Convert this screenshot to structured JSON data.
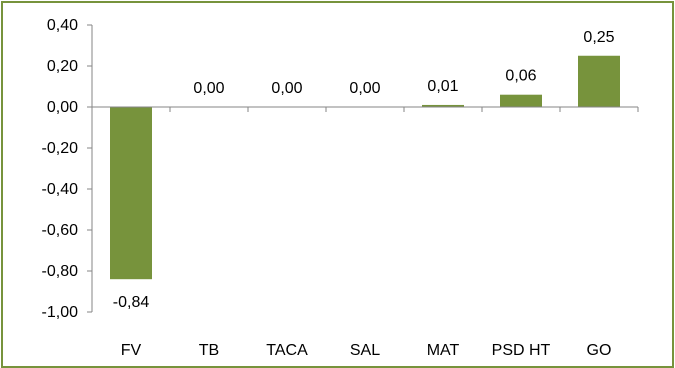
{
  "chart_data": {
    "type": "bar",
    "categories": [
      "FV",
      "TB",
      "TACA",
      "SAL",
      "MAT",
      "PSD HT",
      "GO"
    ],
    "values": [
      -0.84,
      0.0,
      0.0,
      0.0,
      0.01,
      0.06,
      0.25
    ],
    "data_labels": [
      "-0,84",
      "0,00",
      "0,00",
      "0,00",
      "0,01",
      "0,06",
      "0,25"
    ],
    "ylim": [
      -1.0,
      0.4
    ],
    "yticks": [
      0.4,
      0.2,
      0.0,
      -0.2,
      -0.4,
      -0.6,
      -0.8,
      -1.0
    ],
    "ytick_labels": [
      "0,40",
      "0,20",
      "0,00",
      "-0,20",
      "-0,40",
      "-0,60",
      "-0,80",
      "-1,00"
    ],
    "title": "",
    "xlabel": "",
    "ylabel": "",
    "grid": false,
    "legend": "none",
    "colors": {
      "bar": "#77933c",
      "frame": "#77933c",
      "axis": "#868686"
    }
  }
}
